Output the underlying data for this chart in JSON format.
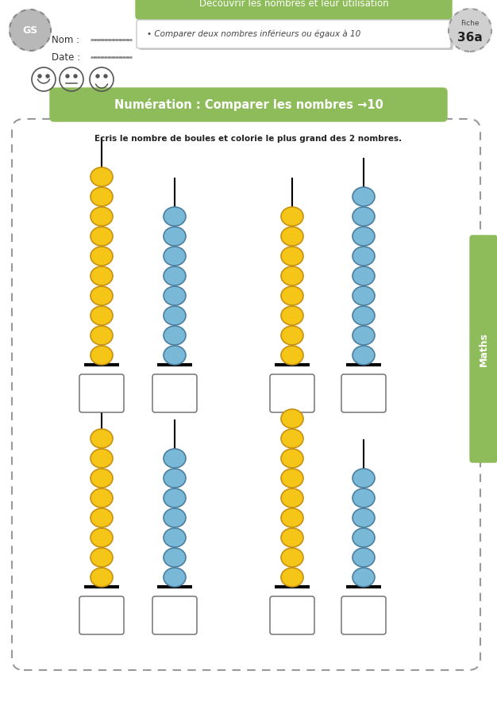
{
  "title": "Numération : Comparer les nombres →10",
  "header_green": "Découvrir les nombres et leur utilisation",
  "objective": "Comparer deux nombres inférieurs ou égaux à 10",
  "instruction": "Ecris le nombre de boules et colorie le plus grand des 2 nombres.",
  "fiche": "36a",
  "subject": "Maths",
  "gs_label": "GS",
  "nom_label": "Nom : ",
  "date_label": "Date : ",
  "url": "http://www.l-profs.fr",
  "background": "#ffffff",
  "green_color": "#8fbc5a",
  "bead_yellow": "#f5c518",
  "bead_yellow_outline": "#c89010",
  "bead_blue": "#7ab8d8",
  "bead_blue_outline": "#4a7fa0",
  "rows": [
    {
      "sticks": [
        {
          "color": "yellow",
          "count": 10
        },
        {
          "color": "blue",
          "count": 8
        },
        {
          "color": "yellow",
          "count": 8
        },
        {
          "color": "blue",
          "count": 9
        }
      ]
    },
    {
      "sticks": [
        {
          "color": "yellow",
          "count": 8
        },
        {
          "color": "blue",
          "count": 7
        },
        {
          "color": "yellow",
          "count": 9
        },
        {
          "color": "blue",
          "count": 6
        }
      ]
    }
  ]
}
